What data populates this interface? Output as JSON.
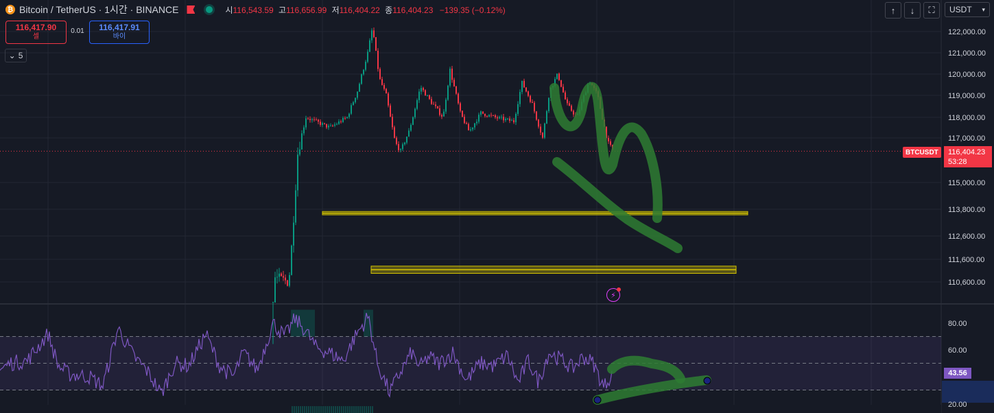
{
  "header": {
    "coin_icon": "bitcoin-icon",
    "symbol": "Bitcoin / TetherUS · 1시간 · BINANCE",
    "o_label": "시",
    "o": "116,543.59",
    "h_label": "고",
    "h": "116,656.99",
    "l_label": "저",
    "l": "116,404.22",
    "c_label": "종",
    "c": "116,404.23",
    "change": "−139.35 (−0.12%)"
  },
  "trade": {
    "sell_price": "116,417.90",
    "sell_label": "셀",
    "spread": "0.01",
    "buy_price": "116,417.91",
    "buy_label": "바이"
  },
  "indicator_toggle": {
    "count": "5"
  },
  "toolbar": {
    "up_icon": "arrow-up-icon",
    "down_icon": "arrow-down-icon",
    "fullscreen_icon": "fullscreen-icon",
    "currency": "USDT"
  },
  "colors": {
    "up": "#089981",
    "down": "#f23645",
    "rsi": "#7e57c2",
    "drawing": "#2e7d32",
    "level": "#d4c400"
  },
  "badges": {
    "symbol": "BTCUSDT",
    "price": "116,404.23",
    "countdown": "53:28",
    "rsi_value": "43.56"
  },
  "chart_data": [
    {
      "type": "candlestick",
      "title": "",
      "y_ticks": [
        "122,000.00",
        "121,000.00",
        "120,000.00",
        "119,000.00",
        "118,000.00",
        "117,000.00",
        "115,000.00",
        "113,800.00",
        "112,600.00",
        "111,600.00",
        "110,600.00"
      ],
      "y_tick_values": [
        122000,
        121000,
        120000,
        119000,
        118000,
        117000,
        115000,
        113800,
        112600,
        111600,
        110600
      ],
      "last_price": 116404.23,
      "anchors": [
        [
          0,
          106500
        ],
        [
          80,
          107200
        ],
        [
          130,
          107000
        ],
        [
          190,
          107600
        ],
        [
          260,
          107100
        ],
        [
          300,
          107200
        ],
        [
          380,
          107400
        ],
        [
          398,
          107600
        ],
        [
          400,
          110800
        ],
        [
          420,
          110600
        ],
        [
          425,
          112500
        ],
        [
          433,
          116300
        ],
        [
          445,
          118000
        ],
        [
          480,
          117500
        ],
        [
          505,
          118000
        ],
        [
          520,
          119200
        ],
        [
          535,
          121000
        ],
        [
          542,
          122200
        ],
        [
          552,
          119800
        ],
        [
          562,
          119000
        ],
        [
          575,
          116800
        ],
        [
          583,
          116400
        ],
        [
          595,
          117300
        ],
        [
          612,
          119400
        ],
        [
          625,
          118800
        ],
        [
          645,
          118000
        ],
        [
          655,
          120200
        ],
        [
          670,
          118200
        ],
        [
          683,
          117300
        ],
        [
          700,
          118200
        ],
        [
          720,
          118000
        ],
        [
          748,
          117800
        ],
        [
          760,
          119600
        ],
        [
          775,
          118600
        ],
        [
          790,
          117000
        ],
        [
          800,
          119200
        ],
        [
          812,
          120000
        ],
        [
          825,
          118600
        ],
        [
          840,
          118000
        ],
        [
          858,
          119700
        ],
        [
          870,
          119000
        ],
        [
          885,
          116800
        ],
        [
          893,
          116404
        ]
      ],
      "levels": [
        {
          "y1": 113700,
          "y2": 113550,
          "x_start": 470,
          "x_end": 1090
        },
        {
          "y1": 111300,
          "y2": 110980,
          "x_start": 541,
          "x_end": 1073
        }
      ]
    },
    {
      "type": "line",
      "title": "",
      "series_name": "",
      "y_ticks": [
        "80.00",
        "60.00",
        "20.00"
      ],
      "y_tick_values": [
        80,
        60,
        20
      ],
      "bands": [
        30,
        50,
        70
      ],
      "last_value": 43.56,
      "anchors": [
        [
          0,
          45
        ],
        [
          15,
          50
        ],
        [
          40,
          52
        ],
        [
          70,
          72
        ],
        [
          85,
          48
        ],
        [
          100,
          42
        ],
        [
          130,
          40
        ],
        [
          150,
          33
        ],
        [
          172,
          76
        ],
        [
          195,
          55
        ],
        [
          215,
          44
        ],
        [
          235,
          27
        ],
        [
          255,
          50
        ],
        [
          275,
          48
        ],
        [
          300,
          72
        ],
        [
          320,
          48
        ],
        [
          340,
          40
        ],
        [
          355,
          58
        ],
        [
          375,
          45
        ],
        [
          398,
          80
        ],
        [
          415,
          70
        ],
        [
          430,
          83
        ],
        [
          445,
          75
        ],
        [
          460,
          62
        ],
        [
          480,
          58
        ],
        [
          500,
          52
        ],
        [
          520,
          72
        ],
        [
          537,
          85
        ],
        [
          550,
          50
        ],
        [
          568,
          28
        ],
        [
          580,
          40
        ],
        [
          600,
          58
        ],
        [
          612,
          47
        ],
        [
          625,
          55
        ],
        [
          640,
          50
        ],
        [
          660,
          58
        ],
        [
          680,
          37
        ],
        [
          700,
          50
        ],
        [
          720,
          48
        ],
        [
          740,
          56
        ],
        [
          755,
          35
        ],
        [
          770,
          52
        ],
        [
          785,
          36
        ],
        [
          800,
          58
        ],
        [
          820,
          52
        ],
        [
          835,
          46
        ],
        [
          850,
          55
        ],
        [
          865,
          50
        ],
        [
          880,
          32
        ],
        [
          893,
          43.6
        ]
      ]
    }
  ]
}
